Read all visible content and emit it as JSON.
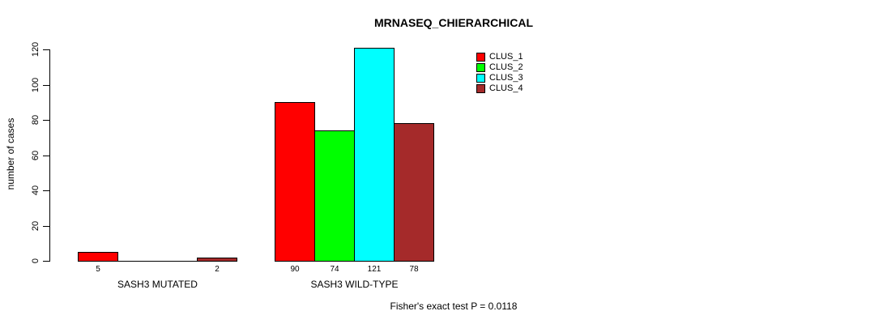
{
  "chart_data": {
    "type": "bar",
    "title": "MRNASEQ_CHIERARCHICAL",
    "ylabel": "number of cases",
    "xlabel": "",
    "ylim": [
      0,
      120
    ],
    "yticks": [
      0,
      20,
      40,
      60,
      80,
      100,
      120
    ],
    "grid": false,
    "legend_position": "top-right",
    "series": [
      {
        "name": "CLUS_1",
        "color": "#FF0000"
      },
      {
        "name": "CLUS_2",
        "color": "#00FF00"
      },
      {
        "name": "CLUS_3",
        "color": "#00FFFF"
      },
      {
        "name": "CLUS_4",
        "color": "#A52A2A"
      }
    ],
    "groups": [
      {
        "label": "SASH3 MUTATED",
        "values": [
          5,
          0,
          0,
          2
        ],
        "bar_labels": [
          "5",
          "",
          "",
          "2"
        ]
      },
      {
        "label": "SASH3 WILD-TYPE",
        "values": [
          90,
          74,
          121,
          78
        ],
        "bar_labels": [
          "90",
          "74",
          "121",
          "78"
        ]
      }
    ],
    "footnote": "Fisher's exact test P = 0.0118"
  }
}
